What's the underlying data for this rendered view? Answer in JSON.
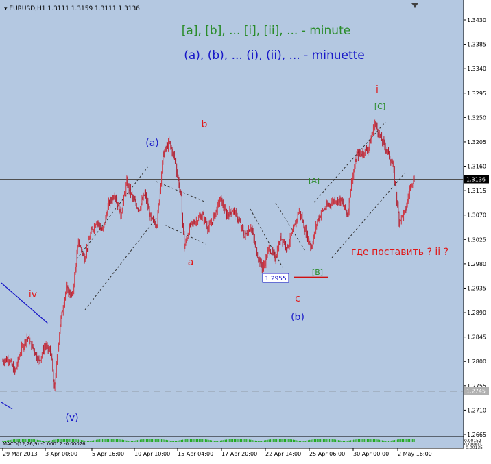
{
  "window": {
    "header": "▾ EURUSD,H1  1.3111 1.3159 1.3111 1.3136",
    "scroll_icon": "triangle-down-icon"
  },
  "colors": {
    "background": "#b4c8e1",
    "candle_up": "#d0303c",
    "candle_down": "#b01c2c",
    "grid": "#000000",
    "wave_red": "#e01818",
    "wave_blue": "#1818c8",
    "wave_green": "#2a8c2a",
    "channel": "#303030",
    "price_line": "#505050",
    "support": "#d01010",
    "macd": "#22aa22"
  },
  "legend": {
    "minute": "[a], [b], ... [i], [ii], ... - minute",
    "minuette": "(a), (b), ... (i), (ii), ... - minuette"
  },
  "annotations": {
    "b": "b",
    "a_paren": "(a)",
    "a": "a",
    "c": "c",
    "b_paren": "(b)",
    "i": "i",
    "C_bracket": "[C]",
    "A_bracket": "[A]",
    "B_bracket": "[B]",
    "iv": "iv",
    "v_paren": "(v)",
    "question": "где поставить ?  ii ?",
    "low_box": "1.2955"
  },
  "indicator": {
    "label": "MACD(12,26,9) -0.00012 -0.00026"
  },
  "chart_data": {
    "type": "candlestick",
    "symbol": "EURUSD",
    "timeframe": "H1",
    "ohlc_last": {
      "open": 1.3111,
      "high": 1.3159,
      "low": 1.3111,
      "close": 1.3136
    },
    "current_price": 1.3136,
    "reference_level": 1.2745,
    "y_ticks": [
      "1.3430",
      "1.3385",
      "1.3340",
      "1.3295",
      "1.3250",
      "1.3205",
      "1.3160",
      "1.3115",
      "1.3070",
      "1.3025",
      "1.2980",
      "1.2935",
      "1.2890",
      "1.2845",
      "1.2800",
      "1.2755",
      "1.2710",
      "1.2665"
    ],
    "y_tick_values": [
      1.343,
      1.3385,
      1.334,
      1.3295,
      1.325,
      1.3205,
      1.316,
      1.3115,
      1.307,
      1.3025,
      1.298,
      1.2935,
      1.289,
      1.2845,
      1.28,
      1.2755,
      1.271,
      1.2665
    ],
    "current_price_label": "1.3136",
    "reference_label": "1.2745",
    "indicator_axis_labels": [
      "0.00152",
      "0.00000",
      "-0.00135"
    ],
    "x_ticks": [
      "29 Mar 2013",
      "3 Apr 00:00",
      "5 Apr 16:00",
      "10 Apr 10:00",
      "15 Apr 04:00",
      "17 Apr 20:00",
      "22 Apr 14:00",
      "25 Apr 06:00",
      "30 Apr 00:00",
      "2 May 16:00"
    ],
    "price_path": [
      [
        0,
        1.28
      ],
      [
        4,
        1.2805
      ],
      [
        8,
        1.278
      ],
      [
        12,
        1.282
      ],
      [
        16,
        1.2845
      ],
      [
        20,
        1.2825
      ],
      [
        24,
        1.28
      ],
      [
        28,
        1.283
      ],
      [
        32,
        1.2815
      ],
      [
        34,
        1.2745
      ],
      [
        38,
        1.287
      ],
      [
        42,
        1.2935
      ],
      [
        46,
        1.292
      ],
      [
        50,
        1.302
      ],
      [
        54,
        1.299
      ],
      [
        58,
        1.3035
      ],
      [
        62,
        1.306
      ],
      [
        66,
        1.304
      ],
      [
        70,
        1.309
      ],
      [
        74,
        1.311
      ],
      [
        78,
        1.307
      ],
      [
        82,
        1.313
      ],
      [
        86,
        1.31
      ],
      [
        90,
        1.308
      ],
      [
        94,
        1.311
      ],
      [
        98,
        1.306
      ],
      [
        102,
        1.3055
      ],
      [
        106,
        1.318
      ],
      [
        110,
        1.3205
      ],
      [
        114,
        1.317
      ],
      [
        118,
        1.31
      ],
      [
        120,
        1.301
      ],
      [
        124,
        1.305
      ],
      [
        128,
        1.306
      ],
      [
        132,
        1.307
      ],
      [
        136,
        1.3045
      ],
      [
        140,
        1.307
      ],
      [
        144,
        1.31
      ],
      [
        148,
        1.307
      ],
      [
        152,
        1.308
      ],
      [
        156,
        1.306
      ],
      [
        160,
        1.303
      ],
      [
        164,
        1.305
      ],
      [
        168,
        1.3
      ],
      [
        172,
        1.297
      ],
      [
        176,
        1.301
      ],
      [
        180,
        1.299
      ],
      [
        184,
        1.303
      ],
      [
        188,
        1.301
      ],
      [
        192,
        1.304
      ],
      [
        196,
        1.308
      ],
      [
        200,
        1.304
      ],
      [
        204,
        1.301
      ],
      [
        208,
        1.306
      ],
      [
        212,
        1.308
      ],
      [
        216,
        1.309
      ],
      [
        220,
        1.31
      ],
      [
        224,
        1.3095
      ],
      [
        228,
        1.307
      ],
      [
        230,
        1.312
      ],
      [
        234,
        1.318
      ],
      [
        238,
        1.3185
      ],
      [
        242,
        1.3195
      ],
      [
        246,
        1.324
      ],
      [
        250,
        1.321
      ],
      [
        254,
        1.319
      ],
      [
        258,
        1.316
      ],
      [
        260,
        1.311
      ],
      [
        262,
        1.306
      ],
      [
        266,
        1.3075
      ],
      [
        270,
        1.313
      ],
      [
        272,
        1.3136
      ]
    ]
  }
}
